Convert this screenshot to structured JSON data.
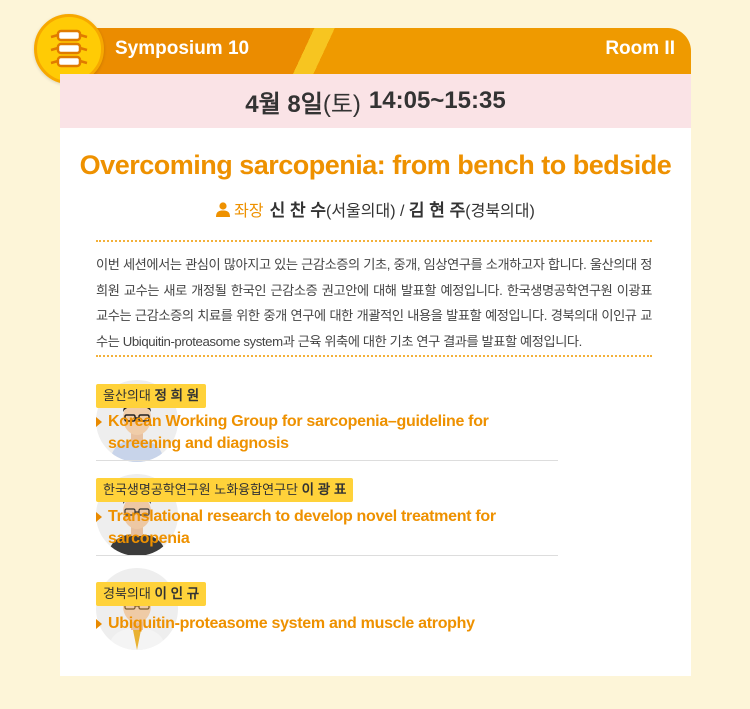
{
  "header": {
    "symposium": "Symposium 10",
    "room": "Room II",
    "logo_icon": "spine-icon"
  },
  "date": {
    "day": "4월 8일",
    "weekday": "(토)",
    "time": "14:05~15:35"
  },
  "session": {
    "title": "Overcoming sarcopenia: from bench to bedside"
  },
  "chairs": {
    "label": "좌장",
    "chair1_name": "신 찬 수",
    "chair1_aff": "(서울의대)",
    "separator": "/",
    "chair2_name": "김 현 주",
    "chair2_aff": "(경북의대)"
  },
  "description": "이번 세션에서는 관심이 많아지고 있는 근감소증의 기초, 중개, 임상연구를 소개하고자 합니다. 울산의대 정희원 교수는 새로 개정될 한국인 근감소증 권고안에 대해 발표할 예정입니다. 한국생명공학연구원 이광표 교수는 근감소증의 치료를 위한 중개 연구에 대한 개괄적인 내용을 발표할 예정입니다. 경북의대 이인규 교수는 Ubiquitin-proteasome system과 근육 위축에 대한 기초 연구 결과를 발표할 예정입니다.",
  "speakers": [
    {
      "affiliation": "울산의대",
      "name": "정 희 원",
      "talk": "Korean Working Group for sarcopenia–guideline for screening and diagnosis"
    },
    {
      "affiliation": "한국생명공학연구원 노화융합연구단",
      "name": "이 광 표",
      "talk": "Translational research to develop novel treatment for sarcopenia"
    },
    {
      "affiliation": "경북의대",
      "name": "이 인 규",
      "talk": "Ubiquitin-proteasome system and muscle atrophy"
    }
  ],
  "colors": {
    "accent": "#ee9100",
    "tag": "#ffd23a",
    "date_band": "#fae3e6",
    "background": "#fdf5d8"
  }
}
